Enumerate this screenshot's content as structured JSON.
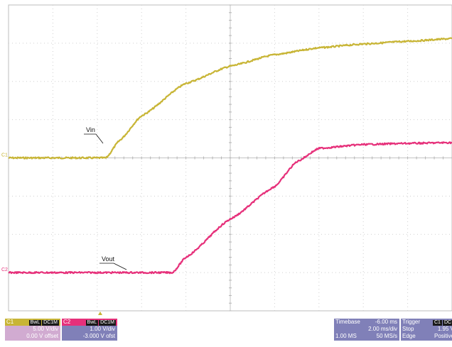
{
  "chart_data": {
    "type": "line",
    "xlim": [
      0,
      10
    ],
    "ylim": [
      -4,
      4
    ],
    "x_divisions": 10,
    "y_divisions": 8,
    "grid": true,
    "series": [
      {
        "name": "C1",
        "color": "#c8b536",
        "ground_marker": "C1",
        "annotation": "Vin",
        "x": [
          0,
          1,
          2.2,
          2.5,
          3,
          4,
          5,
          6,
          7,
          8,
          9,
          10
        ],
        "y": [
          0,
          0,
          0,
          0.45,
          1.1,
          1.95,
          2.4,
          2.7,
          2.88,
          2.98,
          3.05,
          3.12
        ]
      },
      {
        "name": "C2",
        "color": "#e6307a",
        "ground_marker": "C2",
        "annotation": "Vout",
        "x": [
          0,
          1,
          2,
          3,
          3.7,
          4,
          5,
          6,
          6.5,
          7,
          8,
          9,
          10
        ],
        "y": [
          -3,
          -3,
          -3,
          -3,
          -3,
          -2.6,
          -1.6,
          -0.75,
          -0.1,
          0.25,
          0.35,
          0.38,
          0.4
        ]
      }
    ]
  },
  "channels": [
    {
      "id": "C1",
      "bw": "BwL",
      "coupling": "DC1M",
      "scale": "5.00 V/div",
      "offset": "0.00 V offset",
      "bg": "#d1abd1",
      "label_bg": "#c8b536"
    },
    {
      "id": "C2",
      "bw": "BwL",
      "coupling": "DC1M",
      "scale": "1.00 V/div",
      "offset": "-3.000 V ofst",
      "bg": "#8080b8",
      "label_bg": "#e6307a"
    }
  ],
  "timebase": {
    "label": "Timebase",
    "delay": "-6.00 ms",
    "div": "2.00 ms/div",
    "samples": "1.00 MS",
    "rate": "50 MS/s"
  },
  "trigger": {
    "label": "Trigger",
    "source": "C1",
    "coupling": "DC",
    "mode": "Stop",
    "level": "1.95 V",
    "type": "Edge",
    "slope": "Positive"
  },
  "trigger_color": "#c8b536"
}
